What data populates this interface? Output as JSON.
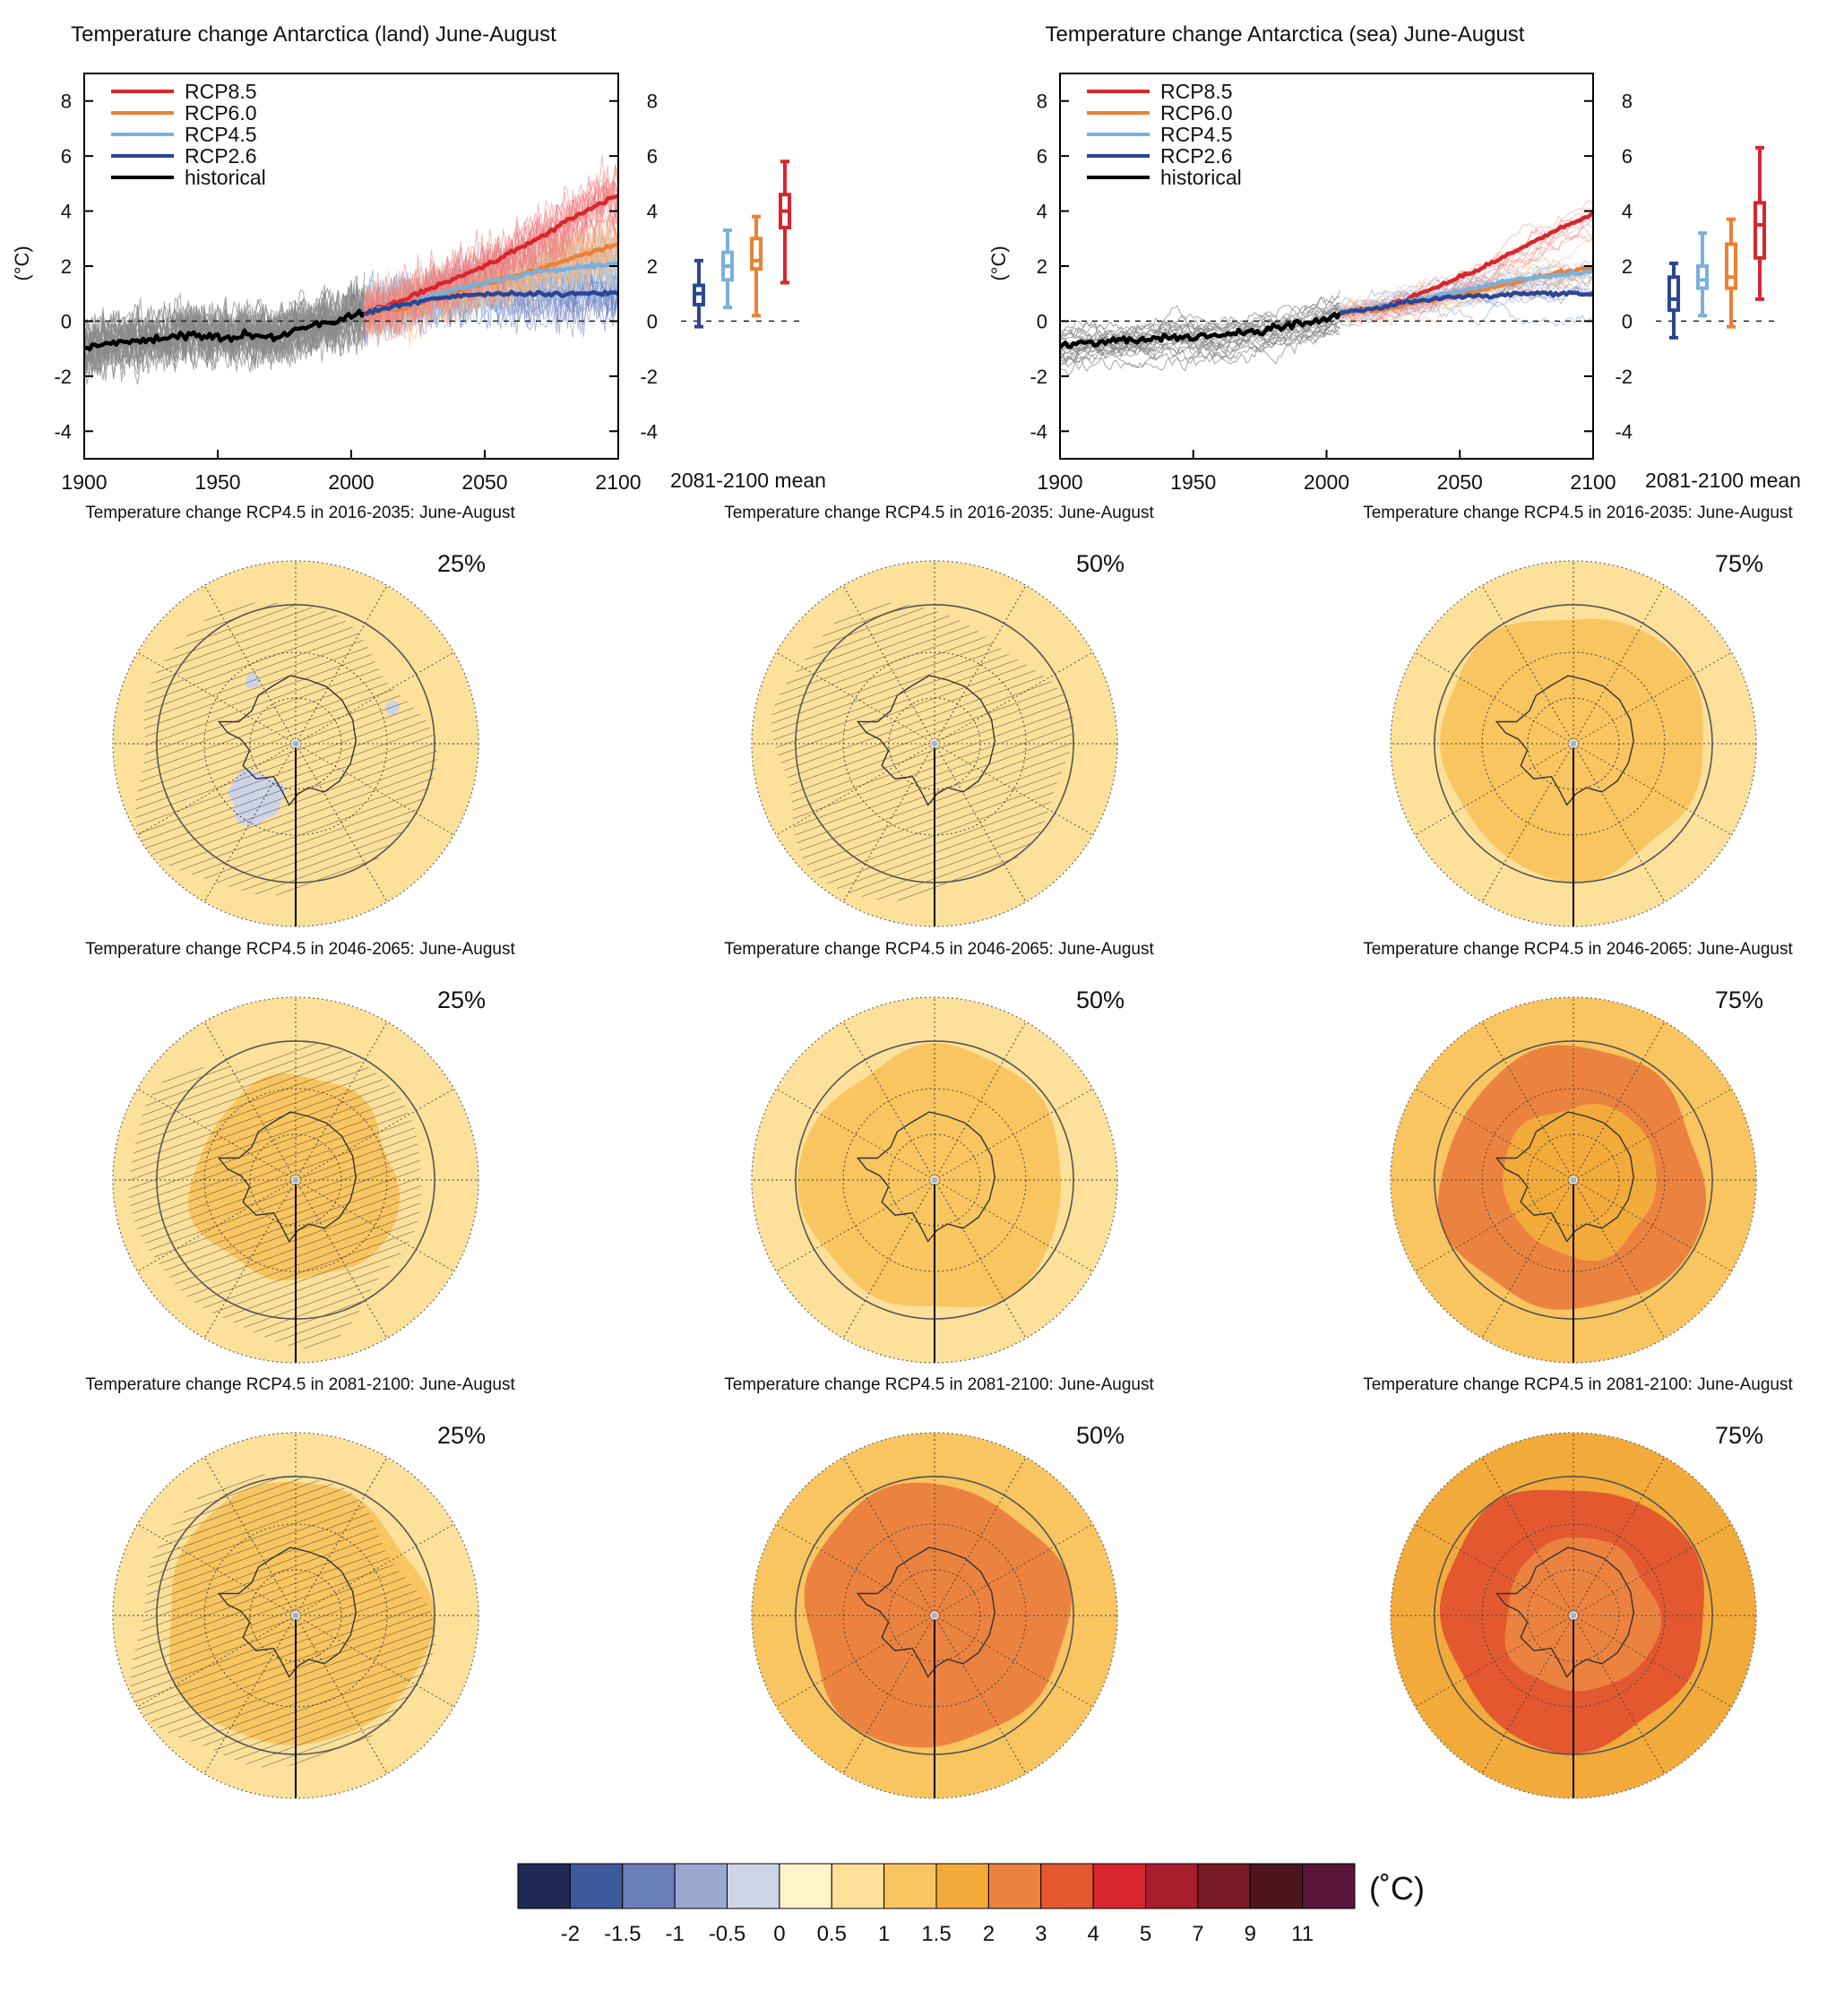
{
  "figure": {
    "unit": "(°C)",
    "colorbar_unit": "(˚C)"
  },
  "chart_data": [
    {
      "id": "land",
      "type": "line",
      "title": "Temperature change Antarctica (land) June-August",
      "ylabel": "(°C)",
      "xlim": [
        1900,
        2100
      ],
      "ylim": [
        -5,
        9
      ],
      "xticks": [
        "1900",
        "1950",
        "2000",
        "2050",
        "2100"
      ],
      "yticks": [
        "8",
        "6",
        "4",
        "2",
        "0",
        "-2",
        "-4"
      ],
      "legend": [
        "RCP8.5",
        "RCP6.0",
        "RCP4.5",
        "RCP2.6",
        "historical"
      ],
      "legend_position": "top-left",
      "series": [
        {
          "name": "historical",
          "color": "#000000",
          "x": [
            1900,
            1910,
            1920,
            1930,
            1940,
            1950,
            1960,
            1970,
            1980,
            1990,
            2000,
            2005
          ],
          "y": [
            -1.0,
            -0.8,
            -0.7,
            -0.6,
            -0.5,
            -0.6,
            -0.5,
            -0.6,
            -0.3,
            -0.1,
            0.2,
            0.3
          ]
        },
        {
          "name": "RCP8.5",
          "color": "#d7262d",
          "x": [
            2005,
            2020,
            2030,
            2040,
            2050,
            2060,
            2070,
            2080,
            2090,
            2100
          ],
          "y": [
            0.3,
            0.8,
            1.2,
            1.6,
            2.0,
            2.5,
            3.0,
            3.6,
            4.1,
            4.6
          ]
        },
        {
          "name": "RCP6.0",
          "color": "#ec8033",
          "x": [
            2005,
            2020,
            2030,
            2040,
            2050,
            2060,
            2070,
            2080,
            2090,
            2100
          ],
          "y": [
            0.3,
            0.5,
            0.8,
            1.1,
            1.4,
            1.6,
            1.9,
            2.2,
            2.5,
            2.8
          ]
        },
        {
          "name": "RCP4.5",
          "color": "#7ab0da",
          "x": [
            2005,
            2020,
            2030,
            2040,
            2050,
            2060,
            2070,
            2080,
            2090,
            2100
          ],
          "y": [
            0.3,
            0.6,
            0.9,
            1.2,
            1.4,
            1.6,
            1.8,
            1.9,
            2.0,
            2.1
          ]
        },
        {
          "name": "RCP2.6",
          "color": "#2c4594",
          "x": [
            2005,
            2020,
            2030,
            2040,
            2050,
            2060,
            2070,
            2080,
            2090,
            2100
          ],
          "y": [
            0.3,
            0.6,
            0.8,
            0.9,
            1.0,
            1.0,
            1.0,
            1.0,
            1.0,
            1.0
          ]
        }
      ],
      "boxes_label": "2081-2100 mean",
      "boxes": [
        {
          "name": "RCP2.6",
          "color": "#2c4594",
          "min": -0.2,
          "q1": 0.6,
          "median": 1.0,
          "q3": 1.3,
          "max": 2.2
        },
        {
          "name": "RCP4.5",
          "color": "#7ab0da",
          "min": 0.5,
          "q1": 1.5,
          "median": 2.0,
          "q3": 2.5,
          "max": 3.3
        },
        {
          "name": "RCP6.0",
          "color": "#ec8033",
          "min": 0.2,
          "q1": 1.9,
          "median": 2.2,
          "q3": 3.0,
          "max": 3.8
        },
        {
          "name": "RCP8.5",
          "color": "#d7262d",
          "min": 1.4,
          "q1": 3.4,
          "median": 4.0,
          "q3": 4.6,
          "max": 5.8
        }
      ]
    },
    {
      "id": "sea",
      "type": "line",
      "title": "Temperature change Antarctica (sea) June-August",
      "ylabel": "(°C)",
      "xlim": [
        1900,
        2100
      ],
      "ylim": [
        -5,
        9
      ],
      "xticks": [
        "1900",
        "1950",
        "2000",
        "2050",
        "2100"
      ],
      "yticks": [
        "8",
        "6",
        "4",
        "2",
        "0",
        "-2",
        "-4"
      ],
      "legend": [
        "RCP8.5",
        "RCP6.0",
        "RCP4.5",
        "RCP2.6",
        "historical"
      ],
      "legend_position": "top-left",
      "series": [
        {
          "name": "historical",
          "color": "#000000",
          "x": [
            1900,
            1910,
            1920,
            1930,
            1940,
            1950,
            1960,
            1970,
            1980,
            1990,
            2000,
            2005
          ],
          "y": [
            -0.9,
            -0.8,
            -0.7,
            -0.7,
            -0.6,
            -0.6,
            -0.5,
            -0.4,
            -0.3,
            -0.1,
            0.1,
            0.3
          ]
        },
        {
          "name": "RCP8.5",
          "color": "#d7262d",
          "x": [
            2005,
            2020,
            2030,
            2040,
            2050,
            2060,
            2070,
            2080,
            2090,
            2100
          ],
          "y": [
            0.3,
            0.5,
            0.8,
            1.2,
            1.6,
            2.0,
            2.5,
            3.0,
            3.5,
            3.9
          ]
        },
        {
          "name": "RCP6.0",
          "color": "#ec8033",
          "x": [
            2005,
            2020,
            2030,
            2040,
            2050,
            2060,
            2070,
            2080,
            2090,
            2100
          ],
          "y": [
            0.3,
            0.4,
            0.6,
            0.8,
            1.0,
            1.2,
            1.4,
            1.6,
            1.8,
            2.0
          ]
        },
        {
          "name": "RCP4.5",
          "color": "#7ab0da",
          "x": [
            2005,
            2020,
            2030,
            2040,
            2050,
            2060,
            2070,
            2080,
            2090,
            2100
          ],
          "y": [
            0.3,
            0.5,
            0.7,
            0.9,
            1.1,
            1.3,
            1.5,
            1.6,
            1.7,
            1.8
          ]
        },
        {
          "name": "RCP2.6",
          "color": "#2c4594",
          "x": [
            2005,
            2020,
            2030,
            2040,
            2050,
            2060,
            2070,
            2080,
            2090,
            2100
          ],
          "y": [
            0.3,
            0.5,
            0.7,
            0.8,
            0.9,
            0.9,
            1.0,
            1.0,
            1.0,
            1.0
          ]
        }
      ],
      "boxes_label": "2081-2100 mean",
      "boxes": [
        {
          "name": "RCP2.6",
          "color": "#2c4594",
          "min": -0.6,
          "q1": 0.4,
          "median": 0.8,
          "q3": 1.6,
          "max": 2.1
        },
        {
          "name": "RCP4.5",
          "color": "#7ab0da",
          "min": 0.2,
          "q1": 1.2,
          "median": 1.5,
          "q3": 2.0,
          "max": 3.2
        },
        {
          "name": "RCP6.0",
          "color": "#ec8033",
          "min": -0.2,
          "q1": 1.2,
          "median": 1.6,
          "q3": 2.8,
          "max": 3.7
        },
        {
          "name": "RCP8.5",
          "color": "#d7262d",
          "min": 0.8,
          "q1": 2.3,
          "median": 3.5,
          "q3": 4.3,
          "max": 6.3
        }
      ]
    },
    {
      "id": "maps",
      "type": "heatmap",
      "panels": [
        {
          "title": "Temperature change RCP4.5 in 2016-2035: June-August",
          "percentile": "25%",
          "outer": 0.5,
          "mid": 0.5,
          "inner": 0.5,
          "hatched": true,
          "cool": true
        },
        {
          "title": "Temperature change RCP4.5 in 2016-2035: June-August",
          "percentile": "50%",
          "outer": 0.5,
          "mid": 0.75,
          "inner": 0.75,
          "hatched": true,
          "cool": false
        },
        {
          "title": "Temperature change RCP4.5 in 2016-2035: June-August",
          "percentile": "75%",
          "outer": 0.75,
          "mid": 1.25,
          "inner": 1.0,
          "hatched": false,
          "cool": false
        },
        {
          "title": "Temperature change RCP4.5 in 2046-2065: June-August",
          "percentile": "25%",
          "outer": 0.75,
          "mid": 0.75,
          "inner": 1.0,
          "hatched": true,
          "cool": false
        },
        {
          "title": "Temperature change RCP4.5 in 2046-2065: June-August",
          "percentile": "50%",
          "outer": 0.75,
          "mid": 1.25,
          "inner": 1.25,
          "hatched": false,
          "cool": false
        },
        {
          "title": "Temperature change RCP4.5 in 2046-2065: June-August",
          "percentile": "75%",
          "outer": 1.25,
          "mid": 2.5,
          "inner": 1.75,
          "hatched": false,
          "cool": false
        },
        {
          "title": "Temperature change RCP4.5 in 2081-2100: June-August",
          "percentile": "25%",
          "outer": 0.75,
          "mid": 1.0,
          "inner": 1.25,
          "hatched": true,
          "cool": false
        },
        {
          "title": "Temperature change RCP4.5 in 2081-2100: June-August",
          "percentile": "50%",
          "outer": 1.25,
          "mid": 2.5,
          "inner": 2.5,
          "hatched": false,
          "cool": false
        },
        {
          "title": "Temperature change RCP4.5 in 2081-2100: June-August",
          "percentile": "75%",
          "outer": 1.75,
          "mid": 3.5,
          "inner": 2.5,
          "hatched": false,
          "cool": false
        }
      ],
      "colorbar": {
        "labels": [
          "-2",
          "-1.5",
          "-1",
          "-0.5",
          "0",
          "0.5",
          "1",
          "1.5",
          "2",
          "3",
          "4",
          "5",
          "7",
          "9",
          "11"
        ],
        "colors": [
          "#1f2a55",
          "#3f5a9c",
          "#6b80b8",
          "#9aa8d0",
          "#cdd4e6",
          "#fff3c8",
          "#fde09a",
          "#f8c560",
          "#f2aa3b",
          "#ec8240",
          "#e3582f",
          "#d7262d",
          "#a81e2c",
          "#781b24",
          "#4f1420",
          "#5a1638"
        ]
      }
    }
  ]
}
